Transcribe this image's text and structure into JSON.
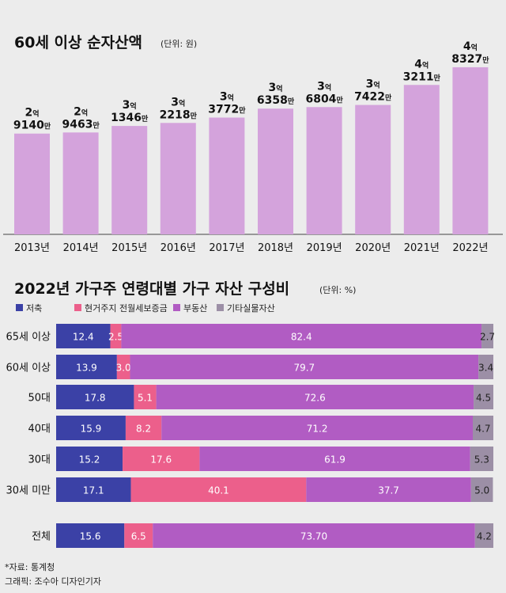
{
  "chart_data": [
    {
      "type": "bar",
      "title": "60세 이상 순자산액",
      "unit_note": "(단위: 원)",
      "categories": [
        "2013년",
        "2014년",
        "2015년",
        "2016년",
        "2017년",
        "2018년",
        "2019년",
        "2020년",
        "2021년",
        "2022년"
      ],
      "values": [
        291400000,
        294630000,
        313460000,
        322180000,
        337720000,
        363580000,
        368040000,
        374220000,
        432110000,
        483270000
      ],
      "labels": [
        {
          "eok": "2",
          "man": "9140"
        },
        {
          "eok": "2",
          "man": "9463"
        },
        {
          "eok": "3",
          "man": "1346"
        },
        {
          "eok": "3",
          "man": "2218"
        },
        {
          "eok": "3",
          "man": "3772"
        },
        {
          "eok": "3",
          "man": "6358"
        },
        {
          "eok": "3",
          "man": "6804"
        },
        {
          "eok": "3",
          "man": "7422"
        },
        {
          "eok": "4",
          "man": "3211"
        },
        {
          "eok": "4",
          "man": "8327"
        }
      ],
      "unit_eok": "억",
      "unit_man": "만",
      "color": "#d4a3dc",
      "ylim": [
        0,
        490000000
      ],
      "grid": false,
      "legend": "none"
    },
    {
      "type": "bar",
      "orientation": "horizontal-stacked",
      "title": "2022년 가구주 연령대별 가구 자산 구성비",
      "unit_note": "(단위: %)",
      "categories": [
        "65세 이상",
        "60세 이상",
        "50대",
        "40대",
        "30대",
        "30세 미만",
        "전체"
      ],
      "series": [
        {
          "name": "저축",
          "color": "#3b41a6",
          "values": [
            12.4,
            13.9,
            17.8,
            15.9,
            15.2,
            17.1,
            15.6
          ],
          "labels": [
            "12.4",
            "13.9",
            "17.8",
            "15.9",
            "15.2",
            "17.1",
            "15.6"
          ]
        },
        {
          "name": "현거주지 전월세보증금",
          "color": "#ec5f8b",
          "values": [
            2.5,
            3.0,
            5.1,
            8.2,
            17.6,
            40.1,
            6.5
          ],
          "labels": [
            "2.5",
            "3.0",
            "5.1",
            "8.2",
            "17.6",
            "40.1",
            "6.5"
          ]
        },
        {
          "name": "부동산",
          "color": "#b15cc3",
          "values": [
            82.4,
            79.7,
            72.6,
            71.2,
            61.9,
            37.7,
            73.7
          ],
          "labels": [
            "82.4",
            "79.7",
            "72.6",
            "71.2",
            "61.9",
            "37.7",
            "73.70"
          ]
        },
        {
          "name": "기타실물자산",
          "color": "#9c8fa6",
          "values": [
            2.7,
            3.4,
            4.5,
            4.7,
            5.3,
            5.0,
            4.2
          ],
          "labels": [
            "2.7",
            "3.4",
            "4.5",
            "4.7",
            "5.3",
            "5.0",
            "4.2"
          ]
        }
      ],
      "xlim": [
        0,
        100
      ],
      "grid": false,
      "legend": "top-left"
    }
  ],
  "footer": {
    "source": "*자료: 통계청",
    "credit": "그래픽: 조수아 디자인기자"
  }
}
